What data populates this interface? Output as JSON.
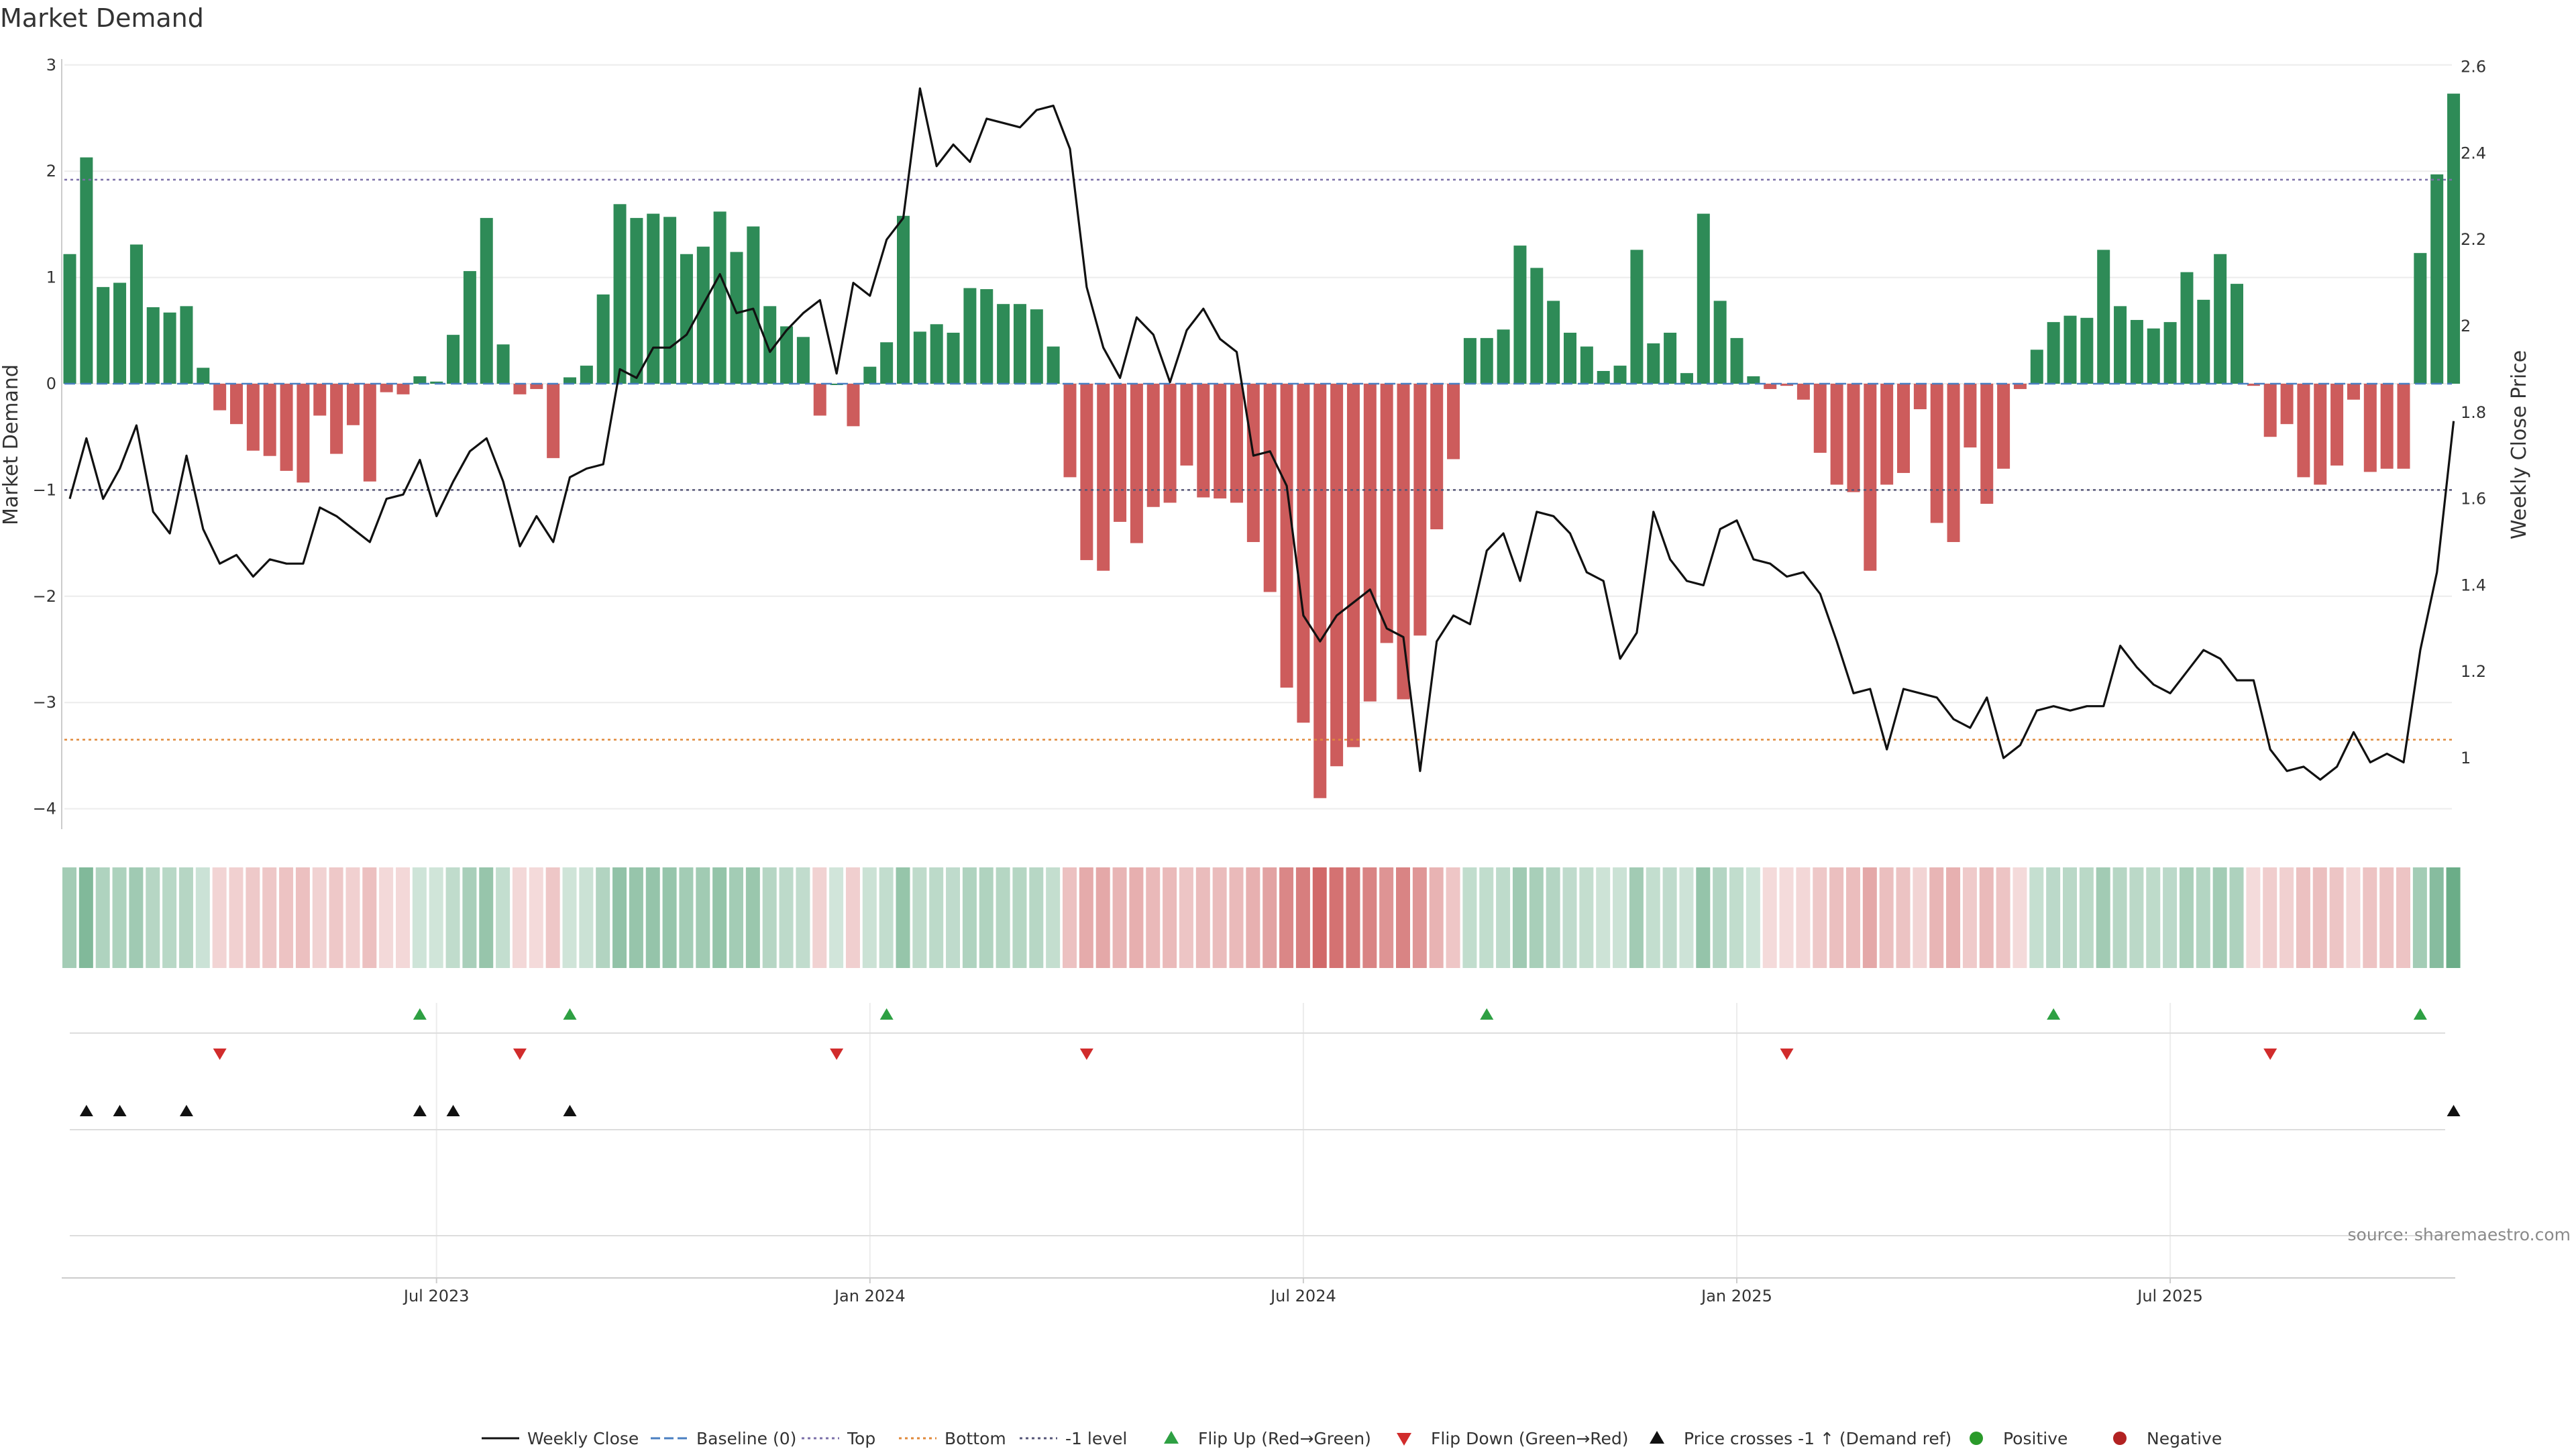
{
  "chart_data": {
    "type": "bar",
    "title": "Market Demand",
    "y_left_label": "Market Demand",
    "y_right_label": "Weekly Close Price",
    "y_left_range": [
      -4.2,
      3.0
    ],
    "y_right_range": [
      0.9,
      2.6
    ],
    "y_left_ticks": [
      "3",
      "2",
      "1",
      "0",
      "−1",
      "−2",
      "−3",
      "−4"
    ],
    "y_left_tick_values": [
      3,
      2,
      1,
      0,
      -1,
      -2,
      -3,
      -4
    ],
    "y_right_ticks": [
      "2.6",
      "2.4",
      "2.2",
      "2",
      "1.8",
      "1.6",
      "1.4",
      "1.2",
      "1"
    ],
    "y_right_tick_values": [
      2.6,
      2.4,
      2.2,
      2.0,
      1.8,
      1.6,
      1.4,
      1.2,
      1.0
    ],
    "x_ticks": [
      "Jul 2023",
      "Jan 2024",
      "Jul 2024",
      "Jan 2025",
      "Jul 2025"
    ],
    "x_tick_weeks": [
      22,
      48,
      74,
      100,
      126
    ],
    "lines": {
      "top": 1.92,
      "bottom": -3.35,
      "minus_one_level": -1.0,
      "baseline": 0
    },
    "demand": [
      1.22,
      2.13,
      0.91,
      0.95,
      1.31,
      0.72,
      0.67,
      0.73,
      0.15,
      -0.25,
      -0.38,
      -0.63,
      -0.68,
      -0.82,
      -0.93,
      -0.3,
      -0.66,
      -0.39,
      -0.92,
      -0.08,
      -0.1,
      0.07,
      0.02,
      0.46,
      1.06,
      1.56,
      0.37,
      -0.1,
      -0.05,
      -0.7,
      0.06,
      0.17,
      0.84,
      1.69,
      1.56,
      1.6,
      1.57,
      1.22,
      1.29,
      1.62,
      1.24,
      1.48,
      0.73,
      0.54,
      0.44,
      -0.3,
      0.0,
      -0.4,
      0.16,
      0.39,
      1.58,
      0.49,
      0.56,
      0.48,
      0.9,
      0.89,
      0.75,
      0.75,
      0.7,
      0.35,
      -0.88,
      -1.66,
      -1.76,
      -1.3,
      -1.5,
      -1.16,
      -1.12,
      -0.77,
      -1.07,
      -1.08,
      -1.12,
      -1.49,
      -1.96,
      -2.86,
      -3.19,
      -3.9,
      -3.6,
      -3.42,
      -2.99,
      -2.44,
      -2.97,
      -2.37,
      -1.37,
      -0.71,
      0.43,
      0.43,
      0.51,
      1.3,
      1.09,
      0.78,
      0.48,
      0.35,
      0.12,
      0.17,
      1.26,
      0.38,
      0.48,
      0.1,
      1.6,
      0.78,
      0.43,
      0.07,
      -0.05,
      -0.02,
      -0.15,
      -0.65,
      -0.95,
      -1.02,
      -1.76,
      -0.95,
      -0.84,
      -0.24,
      -1.31,
      -1.49,
      -0.6,
      -1.13,
      -0.8,
      -0.05,
      0.32,
      0.58,
      0.64,
      0.62,
      1.26,
      0.73,
      0.6,
      0.52,
      0.58,
      1.05,
      0.79,
      1.22,
      0.94,
      -0.02,
      -0.5,
      -0.38,
      -0.88,
      -0.95,
      -0.77,
      -0.15,
      -0.83,
      -0.8,
      -0.8,
      1.23,
      1.97,
      2.73
    ],
    "weekly_close": [
      1.6,
      1.74,
      1.6,
      1.67,
      1.77,
      1.57,
      1.52,
      1.7,
      1.53,
      1.45,
      1.47,
      1.42,
      1.46,
      1.45,
      1.45,
      1.58,
      1.56,
      1.53,
      1.5,
      1.6,
      1.61,
      1.69,
      1.56,
      1.64,
      1.71,
      1.74,
      1.64,
      1.49,
      1.56,
      1.5,
      1.65,
      1.67,
      1.68,
      1.9,
      1.88,
      1.95,
      1.95,
      1.98,
      2.05,
      2.12,
      2.03,
      2.04,
      1.94,
      1.99,
      2.03,
      2.06,
      1.89,
      2.1,
      2.07,
      2.2,
      2.25,
      2.55,
      2.37,
      2.42,
      2.38,
      2.48,
      2.47,
      2.46,
      2.5,
      2.51,
      2.41,
      2.09,
      1.95,
      1.88,
      2.02,
      1.98,
      1.87,
      1.99,
      2.04,
      1.97,
      1.94,
      1.7,
      1.71,
      1.63,
      1.33,
      1.27,
      1.33,
      1.36,
      1.39,
      1.3,
      1.28,
      0.97,
      1.27,
      1.33,
      1.31,
      1.48,
      1.52,
      1.41,
      1.57,
      1.56,
      1.52,
      1.43,
      1.41,
      1.23,
      1.29,
      1.57,
      1.46,
      1.41,
      1.4,
      1.53,
      1.55,
      1.46,
      1.45,
      1.42,
      1.43,
      1.38,
      1.27,
      1.15,
      1.16,
      1.02,
      1.16,
      1.15,
      1.14,
      1.09,
      1.07,
      1.14,
      1.0,
      1.03,
      1.11,
      1.12,
      1.11,
      1.12,
      1.12,
      1.26,
      1.21,
      1.17,
      1.15,
      1.2,
      1.25,
      1.23,
      1.18,
      1.18,
      1.02,
      0.97,
      0.98,
      0.95,
      0.98,
      1.06,
      0.99,
      1.01,
      0.99,
      1.25,
      1.43,
      1.78
    ],
    "flip_up_weeks": [
      21,
      30,
      49,
      85,
      119,
      141
    ],
    "flip_down_weeks": [
      9,
      27,
      46,
      61,
      103,
      132
    ],
    "price_cross_weeks": [
      1,
      3,
      7,
      21,
      23,
      30,
      143
    ],
    "colors": {
      "positive": "#2e8b57",
      "negative": "#cd5c5c",
      "weekly_close": "#111111",
      "baseline": "#4a7fc1",
      "top": "#7b6fa8",
      "bottom": "#e0893a",
      "minus_one_level": "#555577",
      "flip_up": "#2ea043",
      "flip_down": "#d12c2c",
      "price_cross": "#111111",
      "legend_positive": "#2a9a2a",
      "legend_negative": "#b22222"
    },
    "legend": [
      {
        "label": "Weekly Close",
        "marker": "solid-line",
        "color": "#111111"
      },
      {
        "label": "Baseline (0)",
        "marker": "dashed-line",
        "color": "#4a7fc1"
      },
      {
        "label": "Top",
        "marker": "dotted-line",
        "color": "#7b6fa8"
      },
      {
        "label": "Bottom",
        "marker": "dotted-line",
        "color": "#e0893a"
      },
      {
        "label": "-1 level",
        "marker": "dotted-line",
        "color": "#555577"
      },
      {
        "label": "Flip Up (Red→Green)",
        "marker": "triangle-up",
        "color": "#2ea043"
      },
      {
        "label": "Flip Down (Green→Red)",
        "marker": "triangle-down",
        "color": "#d12c2c"
      },
      {
        "label": "Price crosses -1 ↑ (Demand ref)",
        "marker": "triangle-up",
        "color": "#111111"
      },
      {
        "label": "Positive",
        "marker": "circle",
        "color": "#2a9a2a"
      },
      {
        "label": "Negative",
        "marker": "circle",
        "color": "#b22222"
      }
    ],
    "source": "source: sharemaestro.com"
  }
}
